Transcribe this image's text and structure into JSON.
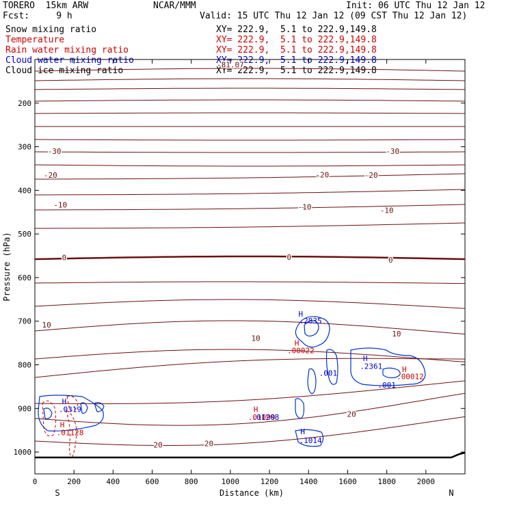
{
  "header": {
    "model": "TORERO  15km ARW",
    "center": "NCAR/MMM",
    "init": "Init: 06 UTC Thu 12 Jan 12",
    "fcst": "Fcst:     9 h",
    "valid": "Valid: 15 UTC Thu 12 Jan 12 (09 CST Thu 12 Jan 12)"
  },
  "legend": [
    {
      "label": "Snow mixing ratio",
      "range": "XY= 222.9,  5.1 to 222.9,149.8",
      "color": "#000000"
    },
    {
      "label": "Temperature",
      "range": "XY= 222.9,  5.1 to 222.9,149.8",
      "color": "#cc0000"
    },
    {
      "label": "Rain water mixing ratio",
      "range": "XY= 222.9,  5.1 to 222.9,149.8",
      "color": "#cc0000"
    },
    {
      "label": "Cloud water mixing ratio",
      "range": "XY= 222.9,  5.1 to 222.9,149.8",
      "color": "#0000cc"
    },
    {
      "label": "Cloud ice mixing ratio",
      "range": "XY= 222.9,  5.1 to 222.9,149.8",
      "color": "#000000"
    }
  ],
  "chart_data": {
    "type": "contour",
    "xlabel": "Distance (km)",
    "ylabel": "Pressure (hPa)",
    "xlim": [
      0,
      2200
    ],
    "ylim": [
      1050,
      100
    ],
    "x_ticks": [
      0,
      200,
      400,
      600,
      800,
      1000,
      1200,
      1400,
      1600,
      1800,
      2000
    ],
    "y_ticks": [
      200,
      300,
      400,
      500,
      600,
      700,
      800,
      900,
      1000
    ],
    "x_end_labels": {
      "left": "S",
      "right": "N"
    },
    "temperature_labels": [
      {
        "text": "-81.07",
        "x": 1000,
        "p": 112
      },
      {
        "text": "-30",
        "x": 100,
        "p": 310
      },
      {
        "text": "-30",
        "x": 1830,
        "p": 310
      },
      {
        "text": "-20",
        "x": 80,
        "p": 365
      },
      {
        "text": "-20",
        "x": 1470,
        "p": 364
      },
      {
        "text": "-20",
        "x": 1720,
        "p": 365
      },
      {
        "text": "-10",
        "x": 130,
        "p": 433
      },
      {
        "text": "-10",
        "x": 1380,
        "p": 438
      },
      {
        "text": "-10",
        "x": 1800,
        "p": 446
      },
      {
        "text": "0",
        "x": 150,
        "p": 554
      },
      {
        "text": "0",
        "x": 1300,
        "p": 553
      },
      {
        "text": "0",
        "x": 1820,
        "p": 559
      },
      {
        "text": "10",
        "x": 60,
        "p": 708
      },
      {
        "text": "10",
        "x": 1130,
        "p": 739
      },
      {
        "text": "10",
        "x": 1850,
        "p": 729
      },
      {
        "text": "20",
        "x": 630,
        "p": 983
      },
      {
        "text": "20",
        "x": 890,
        "p": 980
      },
      {
        "text": "20",
        "x": 1620,
        "p": 913
      }
    ],
    "extrema_labels": [
      {
        "text": "H",
        "x": 1360,
        "p": 683,
        "color": "#0000cc"
      },
      {
        "text": ".2835",
        "x": 1410,
        "p": 699,
        "color": "#0000cc"
      },
      {
        "text": "H",
        "x": 1340,
        "p": 750,
        "color": "#cc0000"
      },
      {
        "text": ".00022",
        "x": 1360,
        "p": 767,
        "color": "#cc0000"
      },
      {
        "text": ".001",
        "x": 1500,
        "p": 819,
        "color": "#0000cc"
      },
      {
        "text": "H",
        "x": 1690,
        "p": 785,
        "color": "#0000cc"
      },
      {
        "text": ".2361",
        "x": 1720,
        "p": 803,
        "color": "#0000cc"
      },
      {
        "text": "H",
        "x": 1890,
        "p": 810,
        "color": "#cc0000"
      },
      {
        "text": ".00012",
        "x": 1920,
        "p": 827,
        "color": "#cc0000"
      },
      {
        "text": ".001",
        "x": 1800,
        "p": 846,
        "color": "#0000cc"
      },
      {
        "text": "H",
        "x": 150,
        "p": 884,
        "color": "#0000cc"
      },
      {
        "text": ".0319",
        "x": 180,
        "p": 902,
        "color": "#0000cc"
      },
      {
        "text": "H",
        "x": 140,
        "p": 937,
        "color": "#cc0000"
      },
      {
        "text": ".01128",
        "x": 180,
        "p": 955,
        "color": "#cc0000"
      },
      {
        "text": "H",
        "x": 1130,
        "p": 902,
        "color": "#cc0000"
      },
      {
        "text": ".01099",
        "x": 1160,
        "p": 920,
        "color": "#cc0000"
      },
      {
        "text": ".01208",
        "x": 1180,
        "p": 920,
        "color": "#0000cc"
      },
      {
        "text": "H",
        "x": 1370,
        "p": 953,
        "color": "#0000cc"
      },
      {
        "text": ".1014",
        "x": 1410,
        "p": 973,
        "color": "#0000cc"
      }
    ]
  }
}
